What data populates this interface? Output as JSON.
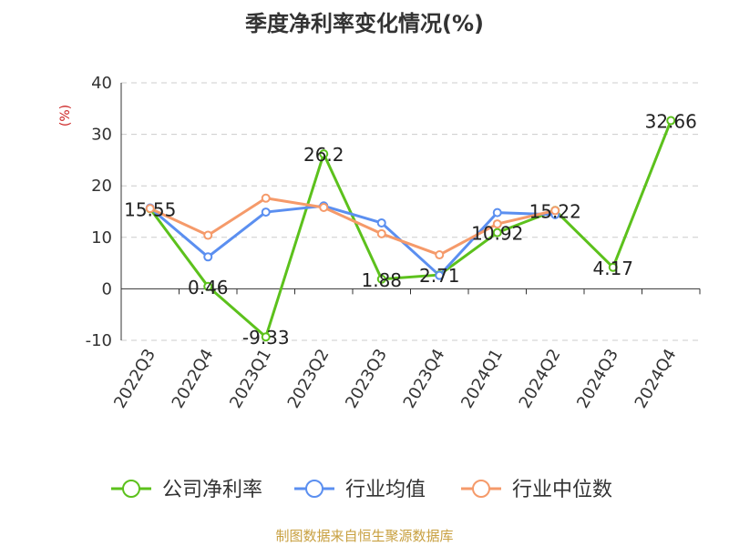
{
  "chart_data": {
    "type": "line",
    "title": "季度净利率变化情况(%)",
    "ylabel": "(%)",
    "xlabel": "",
    "categories": [
      "2022Q3",
      "2022Q4",
      "2023Q1",
      "2023Q2",
      "2023Q3",
      "2023Q4",
      "2024Q1",
      "2024Q2",
      "2024Q3",
      "2024Q4"
    ],
    "ylim": [
      -10,
      40
    ],
    "yticks": [
      -10,
      0,
      10,
      20,
      30,
      40
    ],
    "grid": true,
    "legend_position": "bottom",
    "series": [
      {
        "name": "公司净利率",
        "color": "#5cc11c",
        "labeled": true,
        "values": [
          15.55,
          0.46,
          -9.33,
          26.2,
          1.88,
          2.71,
          10.92,
          15.22,
          4.17,
          32.66
        ]
      },
      {
        "name": "行业均值",
        "color": "#5b8ff0",
        "labeled": false,
        "values": [
          15.7,
          6.2,
          14.9,
          16.1,
          12.8,
          2.6,
          14.8,
          14.4,
          null,
          null
        ]
      },
      {
        "name": "行业中位数",
        "color": "#f59a6a",
        "labeled": false,
        "values": [
          15.6,
          10.4,
          17.6,
          15.8,
          10.7,
          6.6,
          12.6,
          15.2,
          null,
          null
        ]
      }
    ]
  },
  "source": "制图数据来自恒生聚源数据库"
}
